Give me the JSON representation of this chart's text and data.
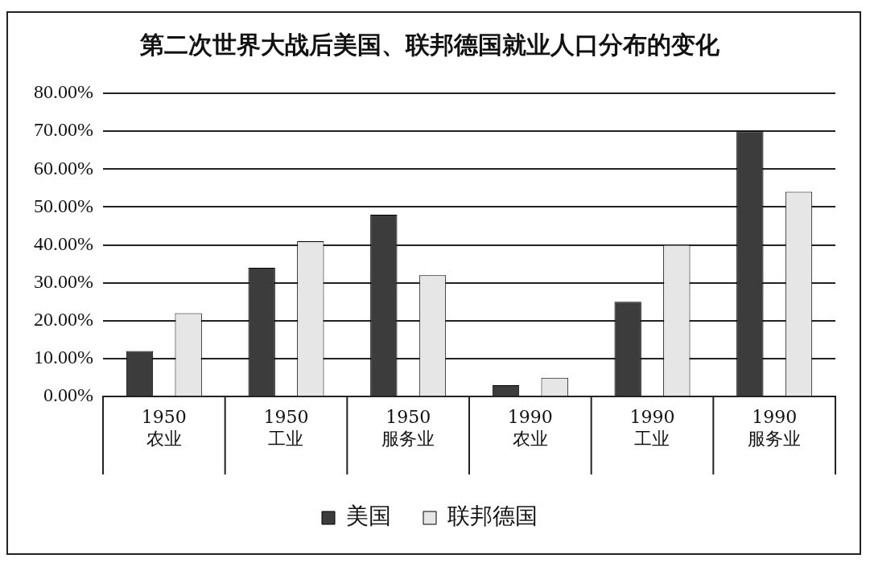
{
  "chart_data": {
    "type": "bar",
    "title": "第二次世界大战后美国、联邦德国就业人口分布的变化",
    "categories": [
      "1950 农业",
      "1950 工业",
      "1950 服务业",
      "1990 农业",
      "1990 工业",
      "1990 服务业"
    ],
    "series": [
      {
        "name": "美国",
        "color": "#3c3c3c",
        "values": [
          12,
          34,
          48,
          3,
          25,
          70
        ]
      },
      {
        "name": "联邦德国",
        "color": "#e6e6e6",
        "values": [
          22,
          41,
          32,
          5,
          40,
          54
        ]
      }
    ],
    "ylim": [
      0,
      80
    ],
    "yticks": [
      {
        "value": 0,
        "label": "0.00%"
      },
      {
        "value": 10,
        "label": "10.00%"
      },
      {
        "value": 20,
        "label": "20.00%"
      },
      {
        "value": 30,
        "label": "30.00%"
      },
      {
        "value": 40,
        "label": "40.00%"
      },
      {
        "value": 50,
        "label": "50.00%"
      },
      {
        "value": 60,
        "label": "60.00%"
      },
      {
        "value": 70,
        "label": "70.00%"
      },
      {
        "value": 80,
        "label": "80.00%"
      }
    ],
    "grid": "y",
    "legend": "bottom"
  }
}
